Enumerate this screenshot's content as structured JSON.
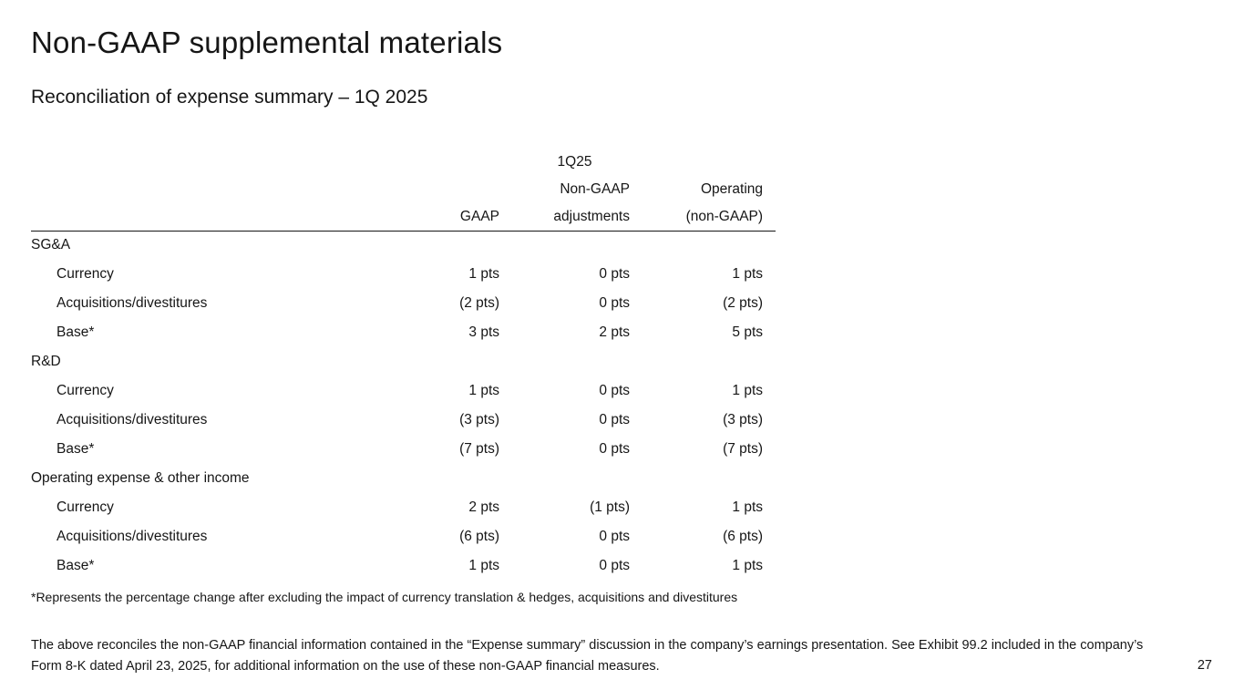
{
  "slide": {
    "title": "Non-GAAP supplemental materials",
    "subtitle": "Reconciliation of expense summary – 1Q 2025",
    "footnote": "*Represents the percentage change after excluding the impact of currency translation & hedges, acquisitions and divestitures",
    "disclaimer": "The above reconciles the non-GAAP financial information contained in the “Expense summary” discussion in the company’s earnings presentation. See Exhibit 99.2 included in the company’s Form 8-K dated April 23, 2025, for additional information on the use of these non-GAAP financial measures.",
    "page_number": "27"
  },
  "table": {
    "period_header": "1Q25",
    "columns": [
      {
        "line1": "",
        "line2": "GAAP"
      },
      {
        "line1": "Non-GAAP",
        "line2": "adjustments"
      },
      {
        "line1": "Operating",
        "line2": "(non-GAAP)"
      }
    ],
    "sections": [
      {
        "label": "SG&A",
        "rows": [
          {
            "label": "Currency",
            "gaap": "1 pts",
            "adjustments": "0 pts",
            "operating": "1 pts"
          },
          {
            "label": "Acquisitions/divestitures",
            "gaap": "(2 pts)",
            "adjustments": "0 pts",
            "operating": "(2 pts)"
          },
          {
            "label": "Base*",
            "gaap": "3 pts",
            "adjustments": "2 pts",
            "operating": "5 pts"
          }
        ]
      },
      {
        "label": "R&D",
        "rows": [
          {
            "label": "Currency",
            "gaap": "1 pts",
            "adjustments": "0 pts",
            "operating": "1 pts"
          },
          {
            "label": "Acquisitions/divestitures",
            "gaap": "(3 pts)",
            "adjustments": "0 pts",
            "operating": "(3 pts)"
          },
          {
            "label": "Base*",
            "gaap": "(7 pts)",
            "adjustments": "0 pts",
            "operating": "(7 pts)"
          }
        ]
      },
      {
        "label": "Operating expense & other income",
        "rows": [
          {
            "label": "Currency",
            "gaap": "2 pts",
            "adjustments": "(1 pts)",
            "operating": "1 pts"
          },
          {
            "label": "Acquisitions/divestitures",
            "gaap": "(6 pts)",
            "adjustments": "0 pts",
            "operating": "(6 pts)"
          },
          {
            "label": "Base*",
            "gaap": "1 pts",
            "adjustments": "0 pts",
            "operating": "1 pts"
          }
        ]
      }
    ]
  }
}
